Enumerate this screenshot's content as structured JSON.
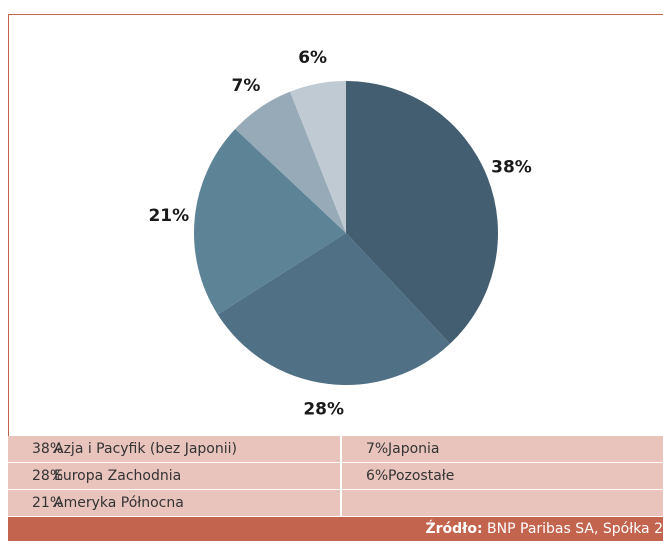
{
  "chart_data": {
    "type": "pie",
    "categories": [
      "Azja i Pacyfik (bez Japonii)",
      "Europa Zachodnia",
      "Ameryka Północna",
      "Japonia",
      "Pozostałe"
    ],
    "values": [
      38,
      28,
      21,
      7,
      6
    ],
    "value_labels": [
      "38%",
      "28%",
      "21%",
      "7%",
      "6%"
    ],
    "colors": [
      "#435e70",
      "#4f7085",
      "#5d8396",
      "#97aab8",
      "#bfcad3"
    ]
  },
  "source": {
    "label": "Źródło:",
    "text": "BNP Paribas SA, Spółka 2"
  }
}
